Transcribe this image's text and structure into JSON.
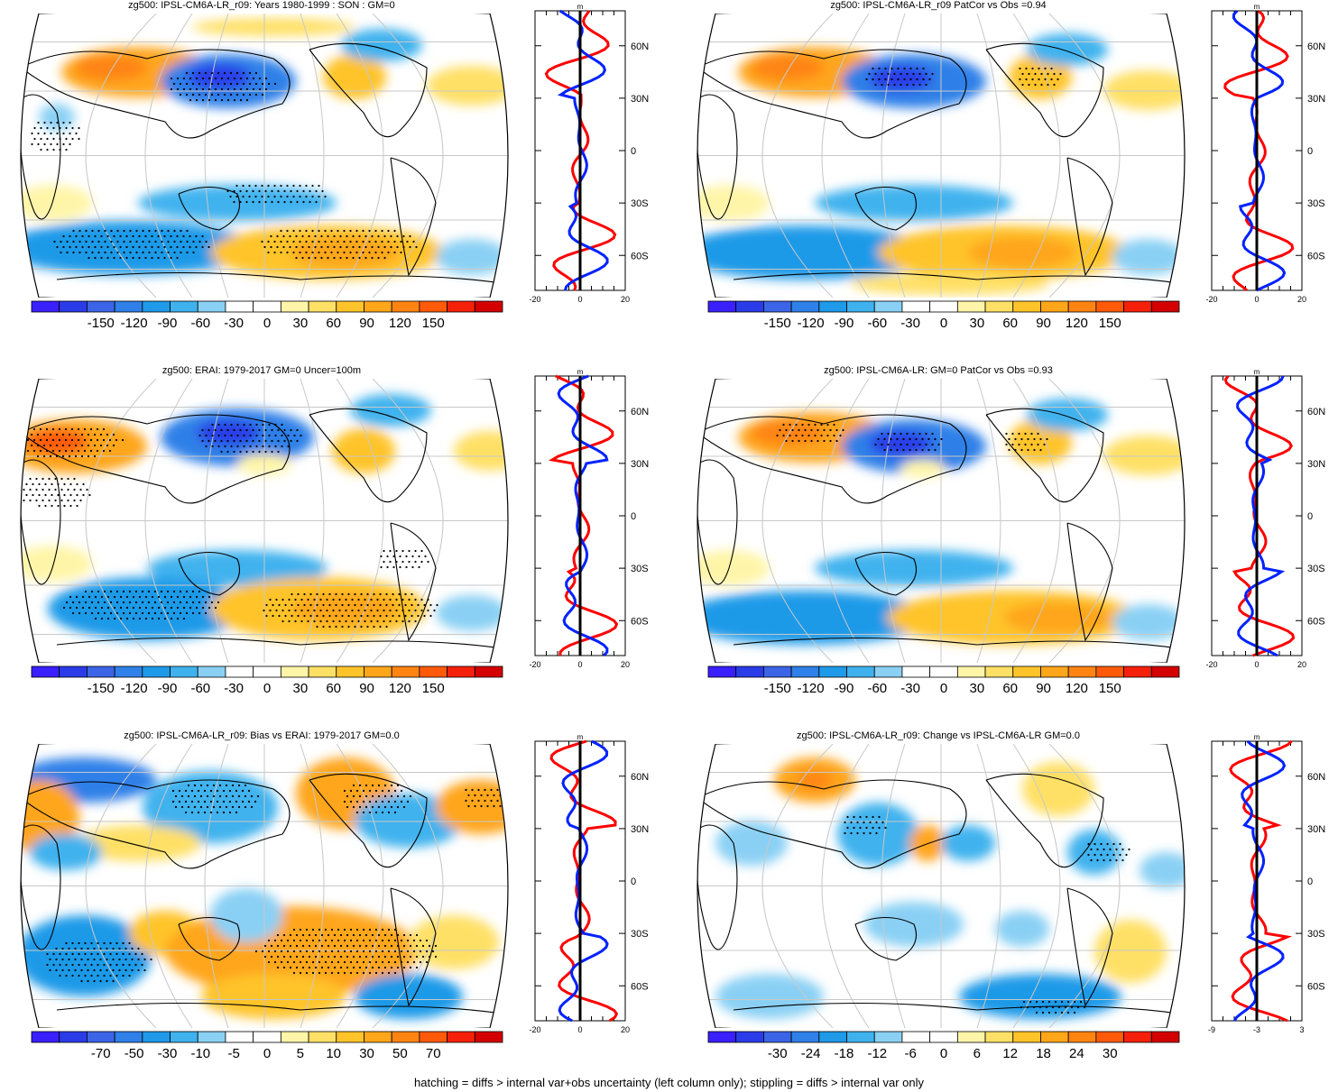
{
  "panels": [
    {
      "title": "zg500: IPSL-CM6A-LR_r09: Years 1980-1999 : SON : GM=0",
      "colorbar": {
        "labels": [
          "-150",
          "-120",
          "-90",
          "-60",
          "-30",
          "0",
          "30",
          "60",
          "90",
          "120",
          "150"
        ]
      },
      "profile": {
        "x_ticks": [
          "-20",
          "0",
          "20"
        ],
        "lat_ticks": [
          "60N",
          "30N",
          "0",
          "30S",
          "60S"
        ],
        "unit": "m"
      }
    },
    {
      "title": "zg500: IPSL-CM6A-LR_r09 PatCor vs Obs =0.94",
      "colorbar": {
        "labels": [
          "-150",
          "-120",
          "-90",
          "-60",
          "-30",
          "0",
          "30",
          "60",
          "90",
          "120",
          "150"
        ]
      },
      "profile": {
        "x_ticks": [
          "-20",
          "0",
          "20"
        ],
        "lat_ticks": [
          "60N",
          "30N",
          "0",
          "30S",
          "60S"
        ],
        "unit": "m"
      }
    },
    {
      "title": "zg500: ERAI: 1979-2017 GM=0 Uncer=100m",
      "colorbar": {
        "labels": [
          "-150",
          "-120",
          "-90",
          "-60",
          "-30",
          "0",
          "30",
          "60",
          "90",
          "120",
          "150"
        ]
      },
      "profile": {
        "x_ticks": [
          "-20",
          "0",
          "20"
        ],
        "lat_ticks": [
          "60N",
          "30N",
          "0",
          "30S",
          "60S"
        ],
        "unit": "m"
      }
    },
    {
      "title": "zg500: IPSL-CM6A-LR: GM=0 PatCor vs Obs =0.93",
      "colorbar": {
        "labels": [
          "-150",
          "-120",
          "-90",
          "-60",
          "-30",
          "0",
          "30",
          "60",
          "90",
          "120",
          "150"
        ]
      },
      "profile": {
        "x_ticks": [
          "-20",
          "0",
          "20"
        ],
        "lat_ticks": [
          "60N",
          "30N",
          "0",
          "30S",
          "60S"
        ],
        "unit": "m"
      }
    },
    {
      "title": "zg500: IPSL-CM6A-LR_r09: Bias vs ERAI: 1979-2017  GM=0.0",
      "colorbar": {
        "labels": [
          "-70",
          "-50",
          "-30",
          "-10",
          "-5",
          "0",
          "5",
          "10",
          "30",
          "50",
          "70"
        ]
      },
      "profile": {
        "x_ticks": [
          "-20",
          "0",
          "20"
        ],
        "lat_ticks": [
          "60N",
          "30N",
          "0",
          "30S",
          "60S"
        ],
        "unit": "m"
      }
    },
    {
      "title": "zg500: IPSL-CM6A-LR_r09: Change vs IPSL-CM6A-LR GM=0.0",
      "colorbar": {
        "labels": [
          "-30",
          "-24",
          "-18",
          "-12",
          "-6",
          "0",
          "6",
          "12",
          "18",
          "24",
          "30"
        ]
      },
      "profile": {
        "x_ticks": [
          "-9",
          "-3",
          "3"
        ],
        "lat_ticks": [
          "60N",
          "30N",
          "0",
          "30S",
          "60S"
        ],
        "unit": "m"
      }
    }
  ],
  "colors": {
    "palette": [
      "#3a1fff",
      "#2a3ce8",
      "#3c64e6",
      "#2f80e8",
      "#1e9ae8",
      "#3fb2ee",
      "#8ad0f4",
      "#ffffff",
      "#ffffff",
      "#fff5a8",
      "#ffe066",
      "#ffc42a",
      "#ffa61a",
      "#ff8412",
      "#ff5a0a",
      "#f5200a",
      "#d40000"
    ],
    "model_line": "#ff0000",
    "obs_line": "#0022ff",
    "ref_line": "#000000"
  },
  "footer": "hatching = diffs > internal var+obs uncertainty (left column only); stippling = diffs > internal var only"
}
